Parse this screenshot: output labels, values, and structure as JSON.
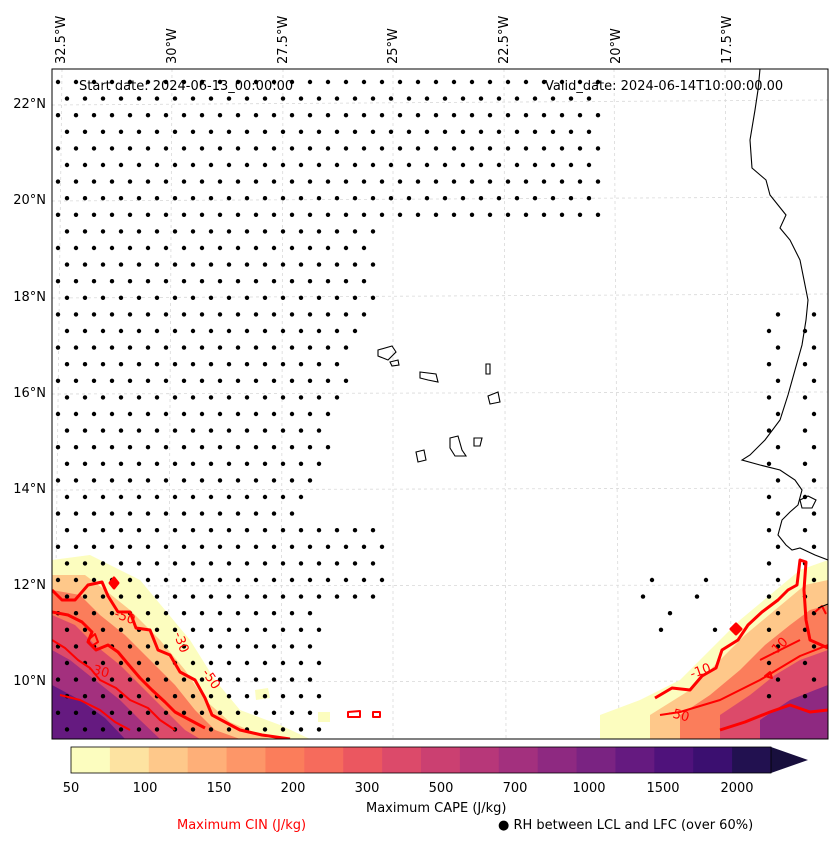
{
  "header": {
    "start_date": "Start date: 2024-06-13_00:00:00",
    "valid_date": "Valid_date: 2024-06-14T10:00:00.00"
  },
  "lon_labels": [
    "32.5°W",
    "30°W",
    "27.5°W",
    "25°W",
    "22.5°W",
    "20°W",
    "17.5°W"
  ],
  "lat_labels": [
    "22°N",
    "20°N",
    "18°N",
    "16°N",
    "14°N",
    "12°N",
    "10°N"
  ],
  "contour_labels": [
    "-50",
    "-50",
    "-30",
    "-30",
    "-10",
    "-50",
    "-10"
  ],
  "colorbar": {
    "title": "Maximum CAPE (J/kg)",
    "ticks": [
      "50",
      "100",
      "150",
      "200",
      "300",
      "500",
      "700",
      "1000",
      "1500",
      "2000"
    ],
    "colors": [
      "#fcfdbf",
      "#fde3a1",
      "#fec88a",
      "#feaf78",
      "#fd9668",
      "#fb7d5b",
      "#f66b5c",
      "#eb5760",
      "#dc4a6a",
      "#cb4071",
      "#b73779",
      "#a3307e",
      "#8e2981",
      "#7a2382",
      "#651a80",
      "#4f127b",
      "#3b0f70",
      "#221150"
    ],
    "arrow_color": "#180f3d"
  },
  "legend": {
    "cin_label": "Maximum CIN (J/kg)",
    "cin_color": "#ff0000",
    "rh_marker": "●",
    "rh_label": "RH between LCL and LFC (over 60%)"
  }
}
